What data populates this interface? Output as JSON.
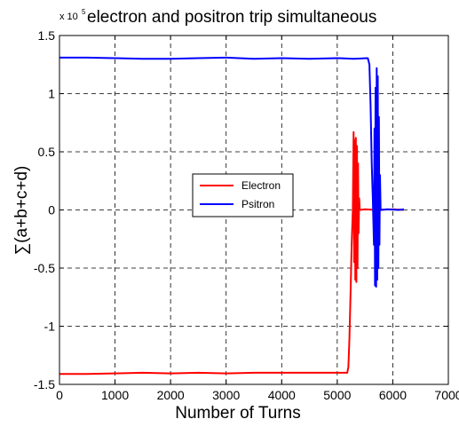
{
  "chart_data": {
    "type": "line",
    "title": "electron and positron trip simultaneous",
    "xlabel": "Number of Turns",
    "ylabel": "∑(a+b+c+d)",
    "y_multiplier_label": "x 10",
    "y_multiplier_exponent": "5",
    "xlim": [
      0,
      7000
    ],
    "ylim": [
      -1.5,
      1.5
    ],
    "x_ticks": [
      0,
      1000,
      2000,
      3000,
      4000,
      5000,
      6000,
      7000
    ],
    "x_tick_labels": [
      "0",
      "1000",
      "2000",
      "3000",
      "4000",
      "5000",
      "6000",
      "7000"
    ],
    "y_ticks": [
      -1.5,
      -1,
      -0.5,
      0,
      0.5,
      1,
      1.5
    ],
    "y_tick_labels": [
      "-1.5",
      "-1",
      "-0.5",
      "0",
      "0.5",
      "1",
      "1.5"
    ],
    "grid": true,
    "legend_position": "center-left",
    "series": [
      {
        "name": "Electron",
        "color": "#ff0000",
        "points": [
          [
            0,
            -1.41
          ],
          [
            500,
            -1.41
          ],
          [
            1000,
            -1.405
          ],
          [
            1500,
            -1.4
          ],
          [
            2000,
            -1.405
          ],
          [
            2500,
            -1.4
          ],
          [
            3000,
            -1.405
          ],
          [
            3500,
            -1.4
          ],
          [
            4000,
            -1.4
          ],
          [
            4500,
            -1.4
          ],
          [
            5000,
            -1.4
          ],
          [
            5180,
            -1.4
          ],
          [
            5200,
            -1.35
          ],
          [
            5220,
            -1.1
          ],
          [
            5240,
            -0.7
          ],
          [
            5260,
            -0.3
          ],
          [
            5280,
            0.0
          ],
          [
            5295,
            0.67
          ],
          [
            5305,
            -0.45
          ],
          [
            5315,
            0.6
          ],
          [
            5325,
            -0.6
          ],
          [
            5335,
            0.62
          ],
          [
            5345,
            -0.62
          ],
          [
            5355,
            0.55
          ],
          [
            5365,
            -0.5
          ],
          [
            5375,
            0.4
          ],
          [
            5385,
            -0.2
          ],
          [
            5395,
            0.1
          ],
          [
            5405,
            0.0
          ],
          [
            5500,
            0.005
          ],
          [
            5700,
            0.0
          ],
          [
            6000,
            0.005
          ],
          [
            6200,
            0.0
          ]
        ]
      },
      {
        "name": "Psitron",
        "color": "#0000ff",
        "points": [
          [
            0,
            1.31
          ],
          [
            500,
            1.31
          ],
          [
            1000,
            1.305
          ],
          [
            1500,
            1.3
          ],
          [
            2000,
            1.3
          ],
          [
            2500,
            1.305
          ],
          [
            3000,
            1.31
          ],
          [
            3500,
            1.3
          ],
          [
            4000,
            1.305
          ],
          [
            4500,
            1.3
          ],
          [
            5000,
            1.305
          ],
          [
            5300,
            1.3
          ],
          [
            5550,
            1.305
          ],
          [
            5580,
            1.25
          ],
          [
            5600,
            0.9
          ],
          [
            5620,
            0.4
          ],
          [
            5640,
            0.1
          ],
          [
            5660,
            -0.3
          ],
          [
            5670,
            0.7
          ],
          [
            5680,
            -0.65
          ],
          [
            5690,
            1.05
          ],
          [
            5700,
            -0.66
          ],
          [
            5710,
            1.22
          ],
          [
            5720,
            -0.6
          ],
          [
            5730,
            1.15
          ],
          [
            5740,
            -0.5
          ],
          [
            5750,
            0.8
          ],
          [
            5760,
            -0.3
          ],
          [
            5770,
            0.3
          ],
          [
            5780,
            0.0
          ],
          [
            5900,
            0.005
          ],
          [
            6100,
            0.0
          ],
          [
            6200,
            0.005
          ]
        ]
      }
    ]
  }
}
